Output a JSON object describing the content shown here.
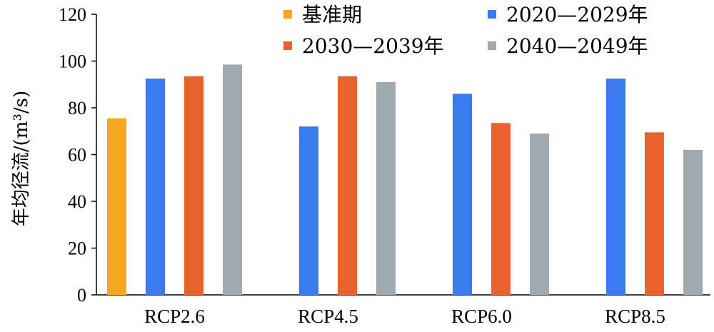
{
  "chart_data": {
    "type": "bar",
    "title": "",
    "xlabel": "",
    "ylabel": "年均径流/(m³/s)",
    "ylim": [
      0,
      120
    ],
    "yticks": [
      0,
      20,
      40,
      60,
      80,
      100,
      120
    ],
    "grid": false,
    "legend_position": "top-right",
    "categories": [
      "RCP2.6",
      "RCP4.5",
      "RCP6.0",
      "RCP8.5"
    ],
    "series": [
      {
        "name": "基准期",
        "color": "#F5A623",
        "values": [
          75.5,
          null,
          null,
          null
        ]
      },
      {
        "name": "2020—2029年",
        "color": "#3B7BF0",
        "values": [
          92.5,
          72,
          86,
          92.5
        ]
      },
      {
        "name": "2030—2039年",
        "color": "#E8622E",
        "values": [
          93.5,
          93.5,
          73.5,
          69.5
        ]
      },
      {
        "name": "2040—2049年",
        "color": "#9FAAB0",
        "values": [
          98.5,
          91,
          69,
          62
        ]
      }
    ]
  }
}
